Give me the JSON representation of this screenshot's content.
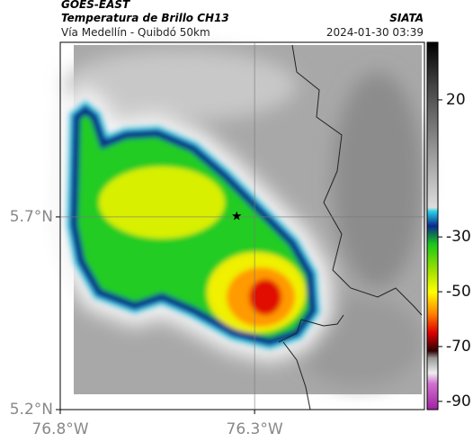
{
  "header": {
    "title": "GOES-EAST",
    "subtitle": "Temperatura de Brillo CH13",
    "location": "Vía Medellín - Quibdó 50km",
    "source": "SIATA",
    "datetime": "2024-01-30 03:39"
  },
  "map": {
    "xlim": [
      -76.8,
      -75.863
    ],
    "ylim": [
      5.2,
      6.153
    ],
    "xticks": [
      {
        "value": -76.8,
        "label": "76.8°W"
      },
      {
        "value": -76.3,
        "label": "76.3°W"
      }
    ],
    "yticks": [
      {
        "value": 5.2,
        "label": "5.2°N"
      },
      {
        "value": 5.7,
        "label": "5.7°N"
      }
    ],
    "marker": {
      "lon": -76.346,
      "lat": 5.702
    }
  },
  "colorbar": {
    "clim": [
      -93,
      41
    ],
    "ticks": [
      20,
      -30,
      -50,
      -70,
      -90
    ]
  }
}
